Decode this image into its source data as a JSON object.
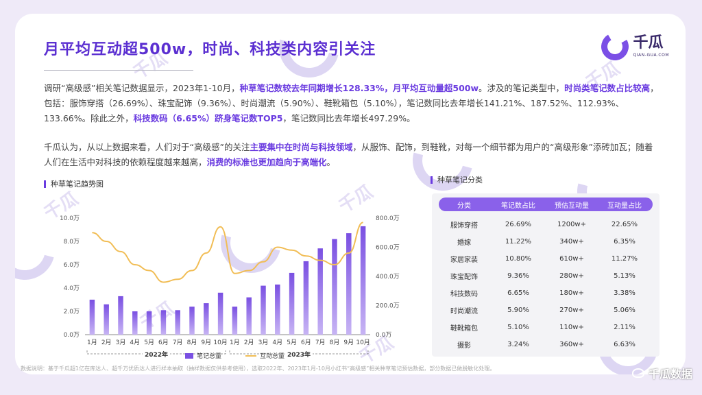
{
  "title": "月平均互动超500w，时尚、科技类内容引关注",
  "logo": {
    "main": "千瓜",
    "sub": "QIAN-GUA.COM"
  },
  "paragraph1": {
    "t1": "调研“高级感”相关笔记数据显示，2023年1-10月，",
    "h1": "种草笔记数较去年同期增长128.33%，月平均互动量超500w",
    "t2": "。涉及的笔记类型中，",
    "h2": "时尚类笔记数占比较高",
    "t3": "，包括：服饰穿搭（26.69%）、珠宝配饰（9.36%）、时尚潮流（5.90%）、鞋靴箱包（5.10%），笔记数同比去年增长141.21%、187.52%、112.93%、133.66%。除此之外，",
    "h3": "科技数码（6.65%）跻身笔记数TOP5",
    "t4": "，笔记数同比去年增长497.29%。"
  },
  "paragraph2": {
    "t1": "千瓜认为，从以上数据来看，人们对于“高级感”的关注",
    "h1": "主要集中在时尚与科技领域",
    "t2": "，从服饰、配饰，到鞋靴，对每一个细节都为用户的“高级形象”添砖加瓦；随着人们在生活中对科技的依赖程度越来越高，",
    "h2": "消费的标准也更加趋向于高端化",
    "t3": "。"
  },
  "chart_label": "种草笔记趋势图",
  "table_label": "种草笔记分类",
  "chart_data": {
    "type": "bar",
    "title": "种草笔记趋势图",
    "categories": [
      "1月",
      "2月",
      "3月",
      "4月",
      "5月",
      "6月",
      "7月",
      "8月",
      "9月",
      "10月",
      "1月",
      "2月",
      "3月",
      "4月",
      "5月",
      "6月",
      "7月",
      "8月",
      "9月",
      "10月"
    ],
    "year_groups": [
      {
        "label": "2022年",
        "from": 0,
        "to": 9
      },
      {
        "label": "2023年",
        "from": 10,
        "to": 19
      }
    ],
    "series": [
      {
        "name": "笔记总量",
        "type": "bar",
        "axis": "left",
        "values": [
          3.0,
          2.6,
          3.3,
          2.0,
          2.0,
          2.1,
          2.1,
          2.4,
          2.7,
          3.6,
          2.4,
          3.2,
          4.2,
          4.3,
          5.3,
          6.3,
          7.4,
          8.2,
          8.7,
          9.3
        ]
      },
      {
        "name": "互动总量",
        "type": "line",
        "axis": "right",
        "values": [
          700,
          640,
          570,
          480,
          440,
          360,
          380,
          440,
          560,
          740,
          420,
          440,
          500,
          600,
          580,
          540,
          510,
          480,
          560,
          770
        ]
      }
    ],
    "y_left": {
      "ticks": [
        "0.0万",
        "2.0万",
        "4.0万",
        "6.0万",
        "8.0万",
        "10.0万"
      ],
      "ylim": [
        0,
        10
      ]
    },
    "y_right": {
      "ticks": [
        "0.0万",
        "200.0万",
        "400.0万",
        "600.0万",
        "800.0万"
      ],
      "ylim": [
        0,
        800
      ]
    },
    "legend": [
      "笔记总量",
      "互动总量"
    ],
    "colors": {
      "bar": "#7a50e2",
      "bar_light": "#c7b4f4",
      "line": "#f1bd55",
      "axis": "#888888"
    }
  },
  "table": {
    "headers": [
      "分类",
      "笔记数占比",
      "预估互动量",
      "互动量占比"
    ],
    "rows": [
      [
        "服饰穿搭",
        "26.69%",
        "1200w+",
        "22.65%"
      ],
      [
        "婚嫁",
        "11.22%",
        "340w+",
        "6.35%"
      ],
      [
        "家居家装",
        "10.80%",
        "610w+",
        "11.27%"
      ],
      [
        "珠宝配饰",
        "9.36%",
        "280w+",
        "5.13%"
      ],
      [
        "科技数码",
        "6.65%",
        "180w+",
        "3.38%"
      ],
      [
        "时尚潮流",
        "5.90%",
        "270w+",
        "5.06%"
      ],
      [
        "鞋靴箱包",
        "5.10%",
        "110w+",
        "2.11%"
      ],
      [
        "摄影",
        "3.24%",
        "360w+",
        "6.63%"
      ]
    ]
  },
  "footnote": "数据说明：基于千瓜超1亿在库达人、超千万优质达人进行样本抽取（抽样数据仅供参考使用），选取2022年、2023年1月-10月小红书“高级感”相关种草笔记预估数据，部分数据已做脱敏化处理。",
  "brand": "千瓜数据"
}
